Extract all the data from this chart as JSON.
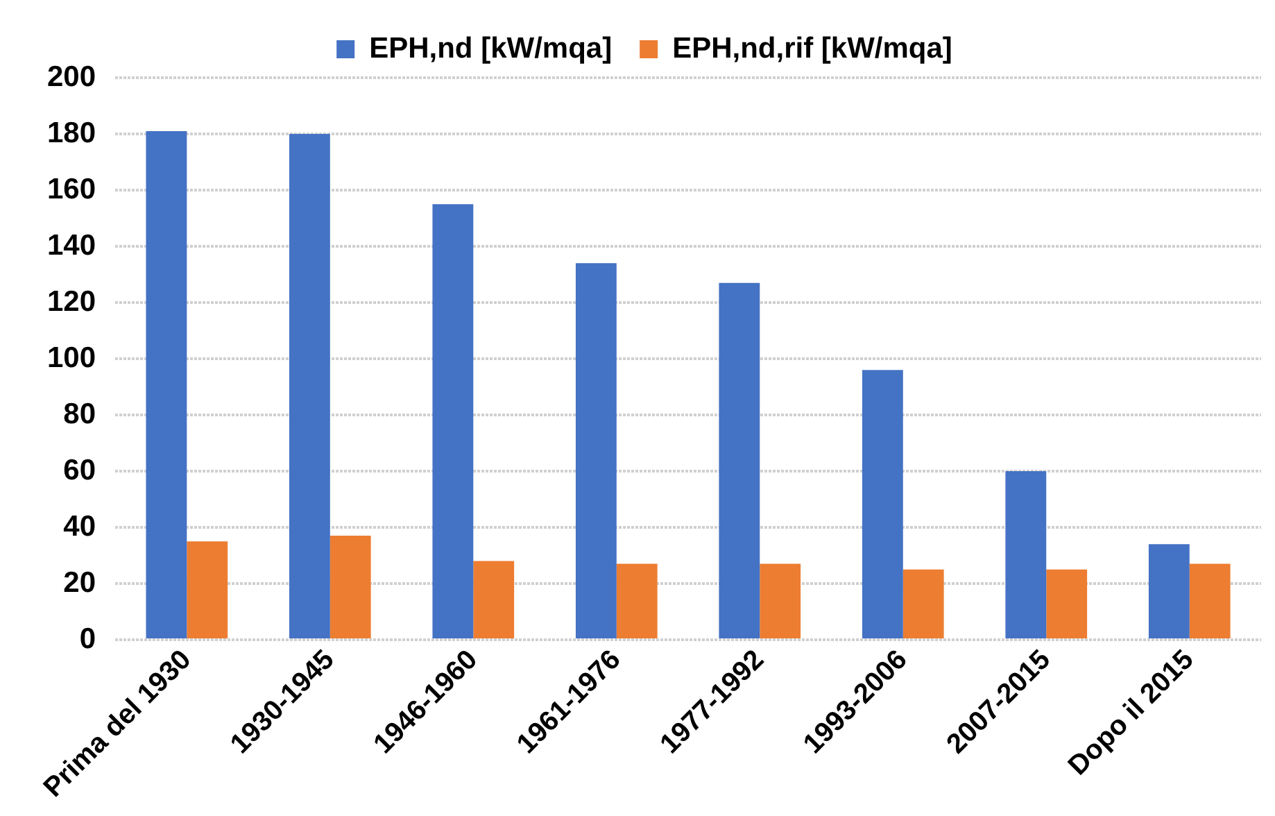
{
  "chart_data": {
    "type": "bar",
    "categories": [
      "Prima del 1930",
      "1930-1945",
      "1946-1960",
      "1961-1976",
      "1977-1992",
      "1993-2006",
      "2007-2015",
      "Dopo il 2015"
    ],
    "series": [
      {
        "name": "EPH,nd [kW/mqa]",
        "color": "#4472c4",
        "values": [
          181,
          180,
          155,
          134,
          127,
          96,
          60,
          34
        ]
      },
      {
        "name": "EPH,nd,rif [kW/mqa]",
        "color": "#ed7d31",
        "values": [
          35,
          37,
          28,
          27,
          27,
          25,
          25,
          27
        ]
      }
    ],
    "ylim": [
      0,
      200
    ],
    "yticks": [
      0,
      20,
      40,
      60,
      80,
      100,
      120,
      140,
      160,
      180,
      200
    ],
    "grid": "y",
    "legend": "top"
  }
}
